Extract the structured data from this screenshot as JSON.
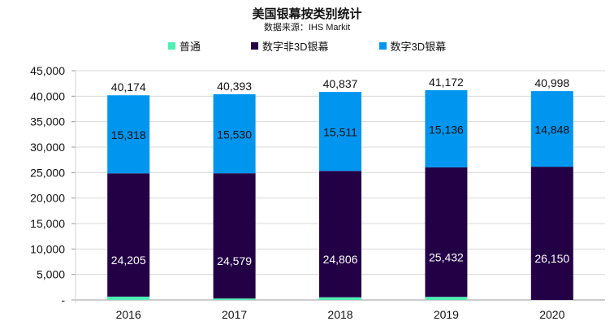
{
  "chart_data": {
    "type": "bar",
    "stacked": true,
    "title": "美国银幕按类别统计",
    "subtitle": "数据来源：IHS Markit",
    "categories": [
      "2016",
      "2017",
      "2018",
      "2019",
      "2020"
    ],
    "series": [
      {
        "name": "普通",
        "color": "#4DF0B4",
        "values": [
          651,
          284,
          520,
          604,
          0
        ]
      },
      {
        "name": "数字非3D银幕",
        "color": "#230046",
        "values": [
          24205,
          24579,
          24806,
          25432,
          26150
        ]
      },
      {
        "name": "数字3D银幕",
        "color": "#0096F0",
        "values": [
          15318,
          15530,
          15511,
          15136,
          14848
        ]
      }
    ],
    "totals": [
      40174,
      40393,
      40837,
      41172,
      40998
    ],
    "y_ticks": [
      "-",
      "5,000",
      "10,000",
      "15,000",
      "20,000",
      "25,000",
      "30,000",
      "35,000",
      "40,000",
      "45,000"
    ],
    "ylim": [
      0,
      45000
    ],
    "grid": true,
    "legend_position": "top"
  }
}
